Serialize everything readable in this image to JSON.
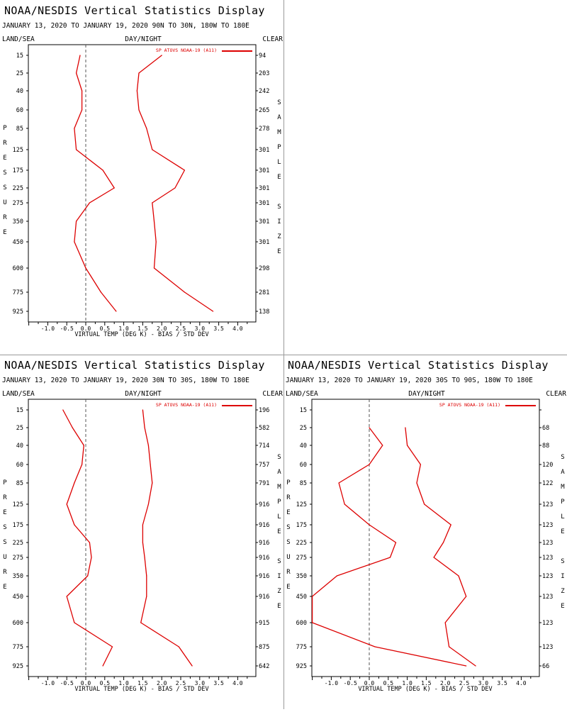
{
  "panels": [
    {
      "title": "NOAA/NESDIS Vertical Statistics Display",
      "date_range": "JANUARY 13, 2020 TO JANUARY 19, 2020  90N TO 30N, 180W TO 180E",
      "left_header": "LAND/SEA",
      "center_header": "DAY/NIGHT",
      "right_header": "CLEAR",
      "legend": "SP ATOVS NOAA-19 (A11)",
      "pressure_letters": [
        "P",
        "R",
        "E",
        "S",
        "S",
        "U",
        "R",
        "E"
      ],
      "sample_letters": [
        "S",
        "A",
        "M",
        "P",
        "L",
        "E",
        "",
        "S",
        "I",
        "Z",
        "E"
      ],
      "xlabel": "VIRTUAL TEMP (DEG K) - BIAS / STD DEV",
      "pressure_levels": [
        "15",
        "25",
        "40",
        "60",
        "85",
        "125",
        "175",
        "225",
        "275",
        "350",
        "450",
        "600",
        "775",
        "925"
      ],
      "sample_size": [
        "94",
        "203",
        "242",
        "265",
        "278",
        "301",
        "301",
        "301",
        "301",
        "301",
        "301",
        "298",
        "281",
        "138"
      ],
      "x_ticks": [
        "-1.0",
        "-0.5",
        "0.0",
        "0.5",
        "1.0",
        "1.5",
        "2.0",
        "2.5",
        "3.0",
        "3.5",
        "4.0"
      ]
    },
    {
      "title": "NOAA/NESDIS Vertical Statistics Display",
      "date_range": "JANUARY 13, 2020 TO JANUARY 19, 2020  30N TO 30S, 180W TO 180E",
      "left_header": "LAND/SEA",
      "center_header": "DAY/NIGHT",
      "right_header": "CLEAR",
      "legend": "SP ATOVS NOAA-19 (A11)",
      "pressure_letters": [
        "P",
        "R",
        "E",
        "S",
        "S",
        "U",
        "R",
        "E"
      ],
      "sample_letters": [
        "S",
        "A",
        "M",
        "P",
        "L",
        "E",
        "",
        "S",
        "I",
        "Z",
        "E"
      ],
      "xlabel": "VIRTUAL TEMP (DEG K) - BIAS / STD DEV",
      "pressure_levels": [
        "15",
        "25",
        "40",
        "60",
        "85",
        "125",
        "175",
        "225",
        "275",
        "350",
        "450",
        "600",
        "775",
        "925"
      ],
      "sample_size": [
        "196",
        "582",
        "714",
        "757",
        "791",
        "916",
        "916",
        "916",
        "916",
        "916",
        "916",
        "915",
        "875",
        "642"
      ],
      "x_ticks": [
        "-1.0",
        "-0.5",
        "0.0",
        "0.5",
        "1.0",
        "1.5",
        "2.0",
        "2.5",
        "3.0",
        "3.5",
        "4.0"
      ]
    },
    {
      "title": "NOAA/NESDIS Vertical Statistics Display",
      "date_range": "JANUARY 13, 2020 TO JANUARY 19, 2020  30S TO 90S, 180W TO 180E",
      "left_header": "LAND/SEA",
      "center_header": "DAY/NIGHT",
      "right_header": "CLEAR",
      "legend": "SP ATOVS NOAA-19 (A11)",
      "pressure_letters": [
        "P",
        "R",
        "E",
        "S",
        "S",
        "U",
        "R",
        "E"
      ],
      "sample_letters": [
        "S",
        "A",
        "M",
        "P",
        "L",
        "E",
        "",
        "S",
        "I",
        "Z",
        "E"
      ],
      "xlabel": "VIRTUAL TEMP (DEG K) - BIAS / STD DEV",
      "pressure_levels": [
        "15",
        "25",
        "40",
        "60",
        "85",
        "125",
        "175",
        "225",
        "275",
        "350",
        "450",
        "600",
        "775",
        "925"
      ],
      "sample_size": [
        "",
        "68",
        "88",
        "120",
        "122",
        "123",
        "123",
        "123",
        "123",
        "123",
        "123",
        "123",
        "123",
        "66"
      ],
      "x_ticks": [
        "-1.0",
        "-0.5",
        "0.0",
        "0.5",
        "1.0",
        "1.5",
        "2.0",
        "2.5",
        "3.0",
        "3.5",
        "4.0"
      ]
    }
  ],
  "chart_data": [
    {
      "type": "line",
      "region": "90N TO 30N",
      "y_levels": [
        15,
        25,
        40,
        60,
        85,
        125,
        175,
        225,
        275,
        350,
        450,
        600,
        775,
        925
      ],
      "xlim": [
        -1.5,
        4.5
      ],
      "series": [
        {
          "name": "SP ATOVS NOAA-19 (A11)",
          "role": "bias",
          "values": [
            -0.15,
            -0.25,
            -0.1,
            -0.1,
            -0.3,
            -0.25,
            0.45,
            0.75,
            0.1,
            -0.25,
            -0.3,
            0.0,
            0.4,
            0.8
          ]
        },
        {
          "name": "SP ATOVS NOAA-19 (A11)",
          "role": "std_dev",
          "values": [
            2.0,
            1.4,
            1.35,
            1.4,
            1.6,
            1.75,
            2.6,
            2.35,
            1.75,
            1.8,
            1.85,
            1.8,
            2.6,
            3.35
          ]
        }
      ],
      "color": "#dd0000"
    },
    {
      "type": "line",
      "region": "30N TO 30S",
      "y_levels": [
        15,
        25,
        40,
        60,
        85,
        125,
        175,
        225,
        275,
        350,
        450,
        600,
        775,
        925
      ],
      "xlim": [
        -1.5,
        4.5
      ],
      "series": [
        {
          "name": "SP ATOVS NOAA-19 (A11)",
          "role": "bias",
          "values": [
            -0.6,
            -0.35,
            -0.05,
            -0.1,
            -0.3,
            -0.5,
            -0.3,
            0.1,
            0.15,
            0.05,
            -0.5,
            -0.3,
            0.7,
            0.45
          ]
        },
        {
          "name": "SP ATOVS NOAA-19 (A11)",
          "role": "std_dev",
          "values": [
            1.5,
            1.55,
            1.65,
            1.7,
            1.75,
            1.65,
            1.5,
            1.5,
            1.55,
            1.6,
            1.6,
            1.45,
            2.45,
            2.8
          ]
        }
      ],
      "color": "#dd0000"
    },
    {
      "type": "line",
      "region": "30S TO 90S",
      "y_levels": [
        25,
        40,
        60,
        85,
        125,
        175,
        225,
        275,
        350,
        450,
        600,
        775,
        925
      ],
      "xlim": [
        -1.5,
        4.5
      ],
      "series": [
        {
          "name": "SP ATOVS NOAA-19 (A11)",
          "role": "bias",
          "values": [
            0.0,
            0.35,
            0.0,
            -0.8,
            -0.65,
            0.0,
            0.7,
            0.55,
            -0.85,
            -1.5,
            -1.5,
            0.15,
            2.55
          ]
        },
        {
          "name": "SP ATOVS NOAA-19 (A11)",
          "role": "std_dev",
          "values": [
            0.95,
            1.0,
            1.35,
            1.25,
            1.45,
            2.15,
            1.95,
            1.7,
            2.35,
            2.55,
            2.0,
            2.1,
            2.8
          ]
        }
      ],
      "color": "#dd0000"
    }
  ]
}
